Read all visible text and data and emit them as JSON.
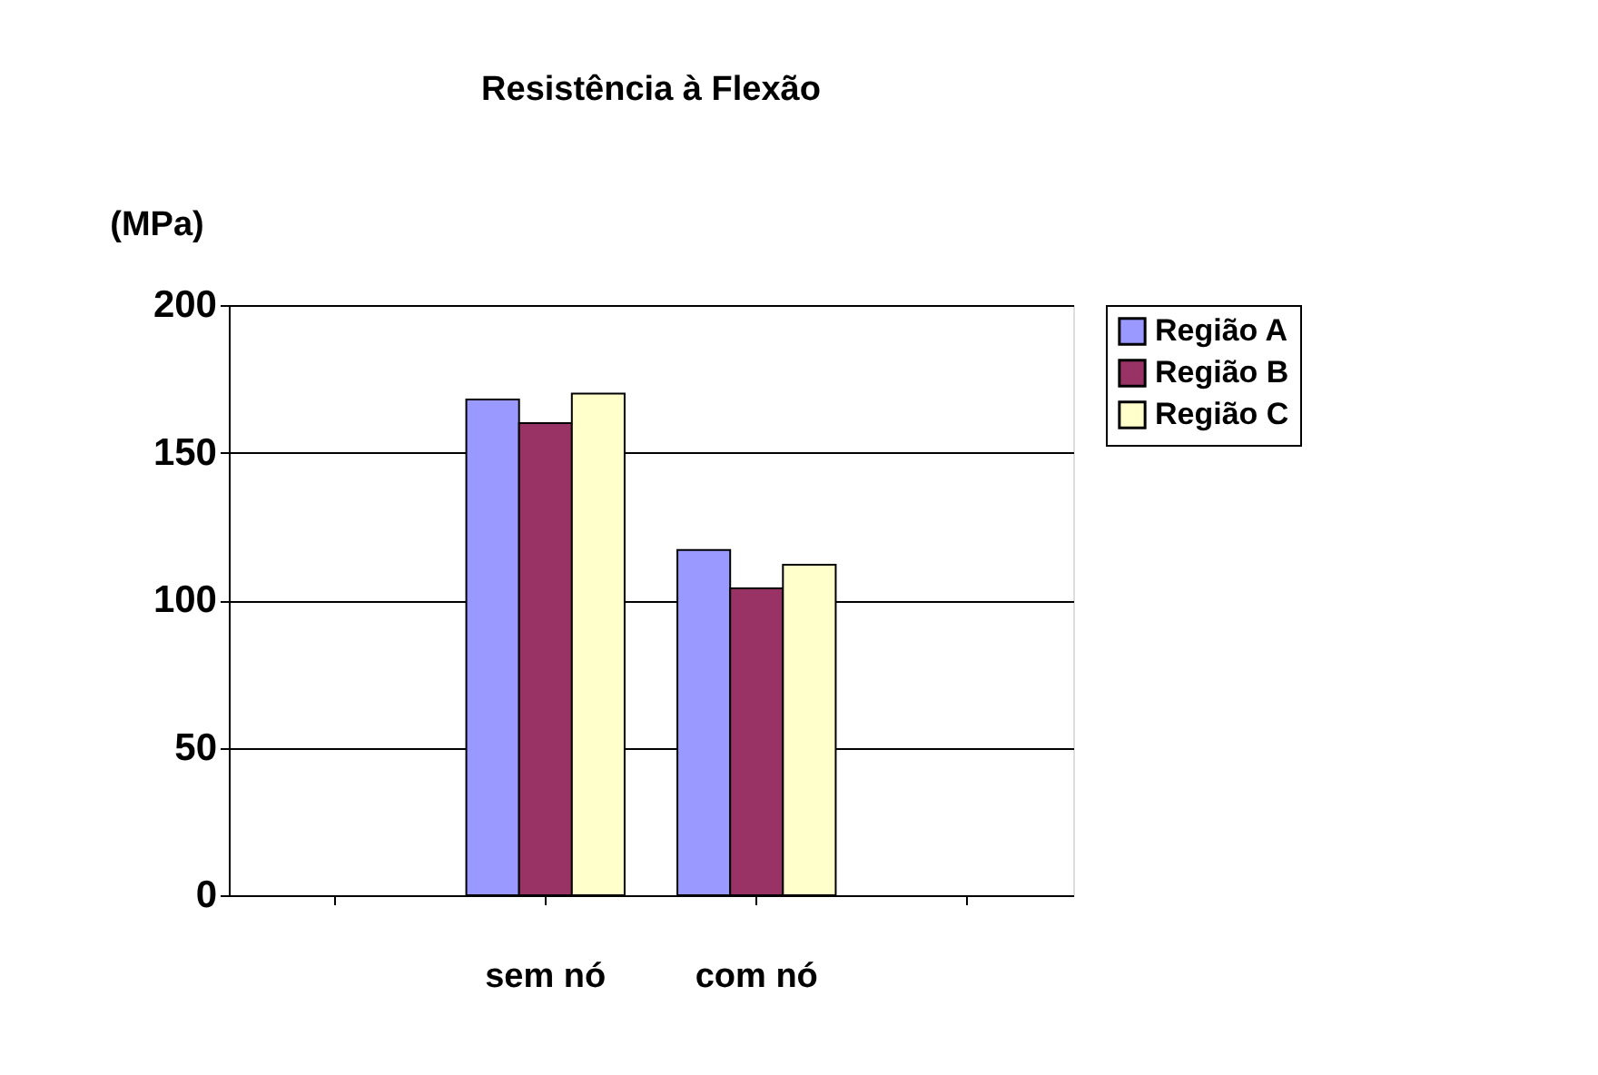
{
  "chart_data": {
    "type": "bar",
    "title": "Resistência à Flexão",
    "ylabel": "(MPa)",
    "categories": [
      null,
      "sem nó",
      "com nó",
      null
    ],
    "series": [
      {
        "name": "Região A",
        "color": "#9999ff",
        "values": [
          null,
          168,
          117,
          null
        ]
      },
      {
        "name": "Região B",
        "color": "#993366",
        "values": [
          null,
          160,
          104,
          null
        ]
      },
      {
        "name": "Região C",
        "color": "#ffffcc",
        "values": [
          null,
          170,
          112,
          null
        ]
      }
    ],
    "ylim": [
      0,
      200
    ],
    "yticks": [
      0,
      50,
      100,
      150,
      200
    ],
    "grid": "y",
    "legend": "right"
  }
}
